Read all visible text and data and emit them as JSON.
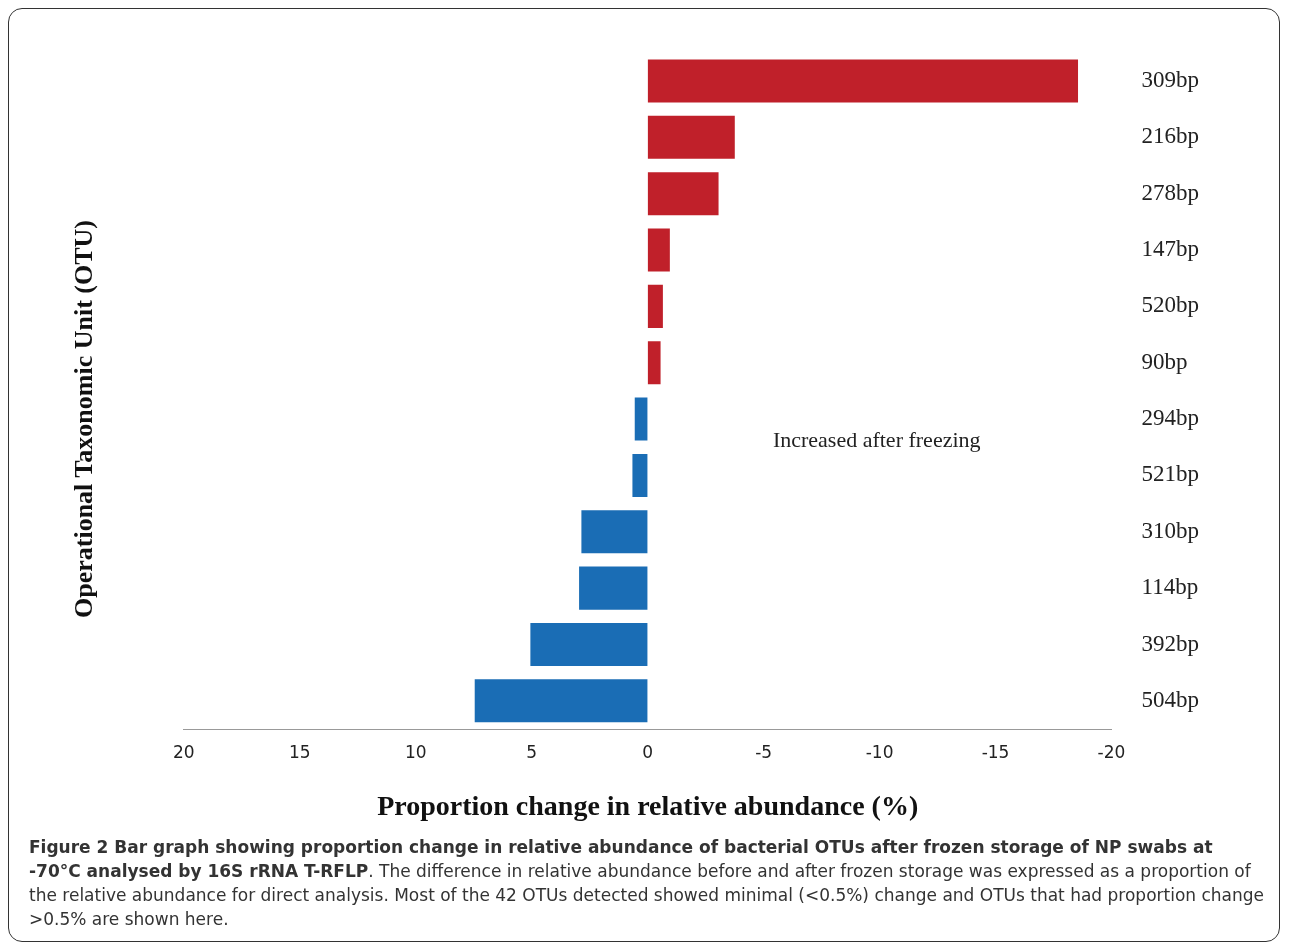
{
  "chart_data": {
    "type": "bar",
    "orientation": "horizontal",
    "xlabel": "Proportion change in relative abundance (%)",
    "ylabel": "Operational Taxonomic Unit (OTU)",
    "categories": [
      "309bp",
      "216bp",
      "278bp",
      "147bp",
      "520bp",
      "90bp",
      "294bp",
      "521bp",
      "310bp",
      "114bp",
      "392bp",
      "504bp"
    ],
    "values": [
      -18.6,
      -3.8,
      -3.1,
      -1.0,
      -0.7,
      -0.6,
      0.6,
      0.7,
      2.9,
      3.0,
      5.1,
      7.5
    ],
    "colors": [
      "#c0202a",
      "#c0202a",
      "#c0202a",
      "#c0202a",
      "#c0202a",
      "#c0202a",
      "#1a6db5",
      "#1a6db5",
      "#1a6db5",
      "#1a6db5",
      "#1a6db5",
      "#1a6db5"
    ],
    "xlim": [
      20,
      -20
    ],
    "xticks": [
      20,
      15,
      10,
      5,
      0,
      -5,
      -10,
      -15,
      -20
    ],
    "grid": false,
    "legend": false,
    "annotations": [
      "Increased after freezing",
      "Figure 2 Bar graph showing proportion change in relative abundance of bacterial OTUs after frozen storage of NP swabs at -70°C analysed by 16S rRNA T-RFLP",
      ". The difference in relative abundance before and after frozen storage was expressed as a proportion of the relative abundance for direct analysis. Most of the 42 OTUs detected showed minimal (<0.5%) change and OTUs that had proportion change >0.5% are shown here."
    ]
  }
}
